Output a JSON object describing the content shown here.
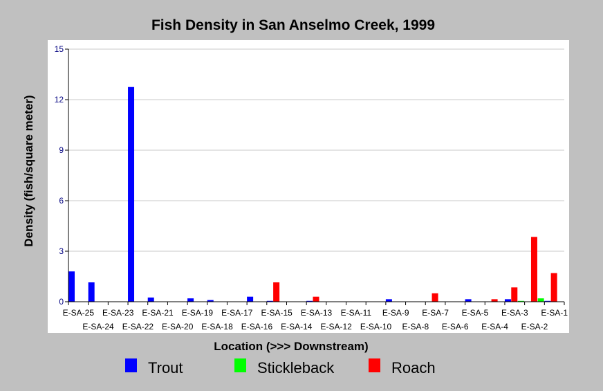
{
  "chart_data": {
    "type": "bar",
    "title": "Fish Density in San Anselmo Creek, 1999",
    "xlabel": "Location (>>> Downstream)",
    "ylabel": "Density (fish/square meter)",
    "ylim": [
      0,
      15
    ],
    "yticks": [
      0,
      3,
      6,
      9,
      12,
      15
    ],
    "grid": true,
    "legend_position": "bottom",
    "categories": [
      "E-SA-25",
      "E-SA-24",
      "E-SA-23",
      "E-SA-22",
      "E-SA-21",
      "E-SA-20",
      "E-SA-19",
      "E-SA-18",
      "E-SA-17",
      "E-SA-16",
      "E-SA-15",
      "E-SA-14",
      "E-SA-13",
      "E-SA-12",
      "E-SA-11",
      "E-SA-10",
      "E-SA-9",
      "E-SA-8",
      "E-SA-7",
      "E-SA-6",
      "E-SA-5",
      "E-SA-4",
      "E-SA-3",
      "E-SA-2",
      "E-SA-1"
    ],
    "series": [
      {
        "name": "Trout",
        "color": "#0000ff",
        "values": [
          1.8,
          1.15,
          0,
          12.75,
          0.25,
          0,
          0.2,
          0.1,
          0,
          0.3,
          0.05,
          0,
          0.05,
          0,
          0,
          0,
          0.15,
          0,
          0,
          0,
          0.15,
          0,
          0.15,
          0,
          0.05
        ]
      },
      {
        "name": "Stickleback",
        "color": "#00ff00",
        "values": [
          0,
          0,
          0,
          0,
          0,
          0,
          0,
          0,
          0,
          0,
          0,
          0,
          0,
          0,
          0,
          0,
          0,
          0,
          0,
          0,
          0,
          0,
          0.05,
          0.2,
          0
        ]
      },
      {
        "name": "Roach",
        "color": "#ff0000",
        "values": [
          0,
          0,
          0,
          0,
          0,
          0,
          0,
          0,
          0,
          1.15,
          0,
          0.3,
          0,
          0,
          0,
          0,
          0,
          0.5,
          0,
          0,
          0.15,
          0.85,
          3.85,
          1.7,
          0
        ]
      }
    ]
  }
}
